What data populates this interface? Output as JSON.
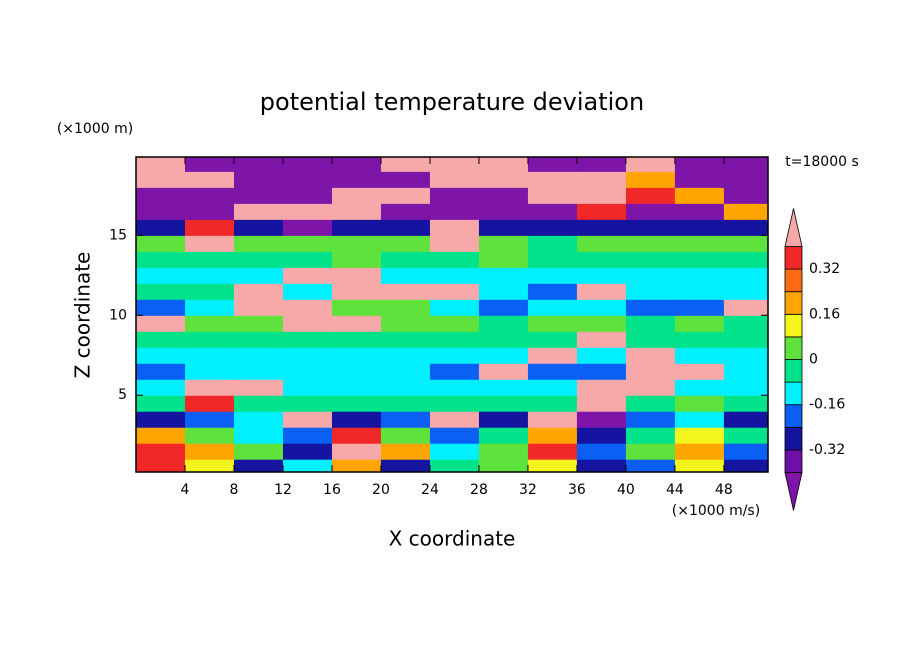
{
  "chart_data": {
    "type": "contour",
    "title": "potential temperature deviation",
    "xlabel": "X coordinate",
    "ylabel": "Z coordinate",
    "x_unit": "(×1000 m/s)",
    "y_unit": "(×1000 m)",
    "annotation": "t=18000 s",
    "x": [
      2,
      6,
      10,
      14,
      18,
      22,
      26,
      30,
      34,
      38,
      42,
      46,
      50
    ],
    "z": [
      0.5,
      1.5,
      2.5,
      3.5,
      4.5,
      5.5,
      6.5,
      7.5,
      8.5,
      9.5,
      10.5,
      11.5,
      12.5,
      13.5,
      14.5,
      15.5,
      16.5,
      17.5,
      18.5,
      19.5
    ],
    "values": [
      [
        0.36,
        0.12,
        -0.28,
        -0.12,
        0.2,
        -0.28,
        -0.04,
        0.04,
        0.12,
        -0.28,
        -0.2,
        0.12,
        -0.28
      ],
      [
        0.36,
        0.2,
        0.04,
        -0.28,
        0.45,
        0.2,
        -0.12,
        0.04,
        0.36,
        -0.2,
        0.04,
        0.2,
        -0.2
      ],
      [
        0.2,
        0.04,
        -0.12,
        -0.2,
        0.36,
        0.04,
        -0.2,
        -0.04,
        0.2,
        -0.28,
        -0.04,
        0.12,
        -0.04
      ],
      [
        -0.28,
        -0.2,
        -0.12,
        0.45,
        -0.28,
        -0.2,
        0.45,
        -0.28,
        0.45,
        -0.45,
        -0.2,
        -0.12,
        -0.28
      ],
      [
        -0.04,
        0.36,
        -0.04,
        -0.04,
        -0.04,
        -0.04,
        -0.04,
        -0.04,
        -0.04,
        0.45,
        -0.04,
        0.04,
        -0.04
      ],
      [
        -0.12,
        0.45,
        0.45,
        -0.12,
        -0.12,
        -0.12,
        -0.12,
        -0.12,
        -0.12,
        0.45,
        0.45,
        -0.12,
        -0.12
      ],
      [
        -0.2,
        -0.12,
        -0.12,
        -0.12,
        -0.12,
        -0.12,
        -0.2,
        0.45,
        -0.2,
        -0.2,
        0.45,
        0.45,
        -0.12
      ],
      [
        -0.12,
        -0.12,
        -0.12,
        -0.12,
        -0.12,
        -0.12,
        -0.12,
        -0.12,
        0.45,
        -0.12,
        0.45,
        -0.12,
        -0.12
      ],
      [
        -0.04,
        -0.04,
        -0.04,
        -0.04,
        -0.04,
        -0.04,
        -0.04,
        -0.04,
        -0.04,
        0.45,
        -0.04,
        -0.04,
        -0.04
      ],
      [
        0.45,
        0.04,
        0.04,
        0.45,
        0.45,
        0.04,
        0.04,
        -0.04,
        0.04,
        0.04,
        -0.04,
        0.04,
        -0.04
      ],
      [
        -0.2,
        -0.12,
        0.45,
        0.45,
        0.04,
        0.04,
        -0.12,
        -0.2,
        -0.12,
        -0.12,
        -0.2,
        -0.2,
        0.45
      ],
      [
        -0.04,
        -0.04,
        0.45,
        -0.12,
        0.45,
        0.45,
        0.45,
        -0.12,
        -0.2,
        0.45,
        -0.12,
        -0.12,
        -0.12
      ],
      [
        -0.12,
        -0.12,
        -0.12,
        0.45,
        0.45,
        -0.12,
        -0.12,
        -0.12,
        -0.12,
        -0.12,
        -0.12,
        -0.12,
        -0.12
      ],
      [
        -0.04,
        -0.04,
        -0.04,
        -0.04,
        0.04,
        -0.04,
        -0.04,
        0.04,
        -0.04,
        -0.04,
        -0.04,
        -0.04,
        -0.04
      ],
      [
        0.04,
        0.45,
        0.04,
        0.04,
        0.04,
        0.04,
        0.45,
        0.04,
        -0.04,
        0.04,
        0.04,
        0.04,
        0.04
      ],
      [
        -0.28,
        0.36,
        -0.28,
        -0.45,
        -0.28,
        -0.28,
        0.45,
        -0.28,
        -0.28,
        -0.28,
        -0.28,
        -0.28,
        -0.28
      ],
      [
        -0.45,
        -0.45,
        0.45,
        0.45,
        0.45,
        -0.45,
        -0.45,
        -0.45,
        -0.45,
        0.36,
        -0.45,
        -0.45,
        0.2
      ],
      [
        -0.45,
        -0.45,
        -0.45,
        -0.45,
        0.45,
        0.45,
        -0.45,
        -0.45,
        0.45,
        0.45,
        0.36,
        0.2,
        -0.45
      ],
      [
        0.45,
        0.45,
        -0.45,
        -0.45,
        -0.45,
        -0.45,
        0.45,
        0.45,
        0.45,
        0.45,
        0.2,
        -0.45,
        -0.45
      ],
      [
        0.45,
        -0.45,
        -0.45,
        -0.45,
        -0.45,
        0.45,
        0.45,
        0.45,
        -0.45,
        -0.45,
        0.45,
        -0.45,
        -0.45
      ]
    ],
    "xlim": [
      0,
      51.6
    ],
    "ylim": [
      0.2,
      19.9
    ],
    "xticks": [
      4,
      8,
      12,
      16,
      20,
      24,
      28,
      32,
      36,
      40,
      44,
      48
    ],
    "yticks": [
      5,
      10,
      15
    ],
    "levels": [
      -0.4,
      -0.32,
      -0.24,
      -0.16,
      -0.08,
      0,
      0.08,
      0.16,
      0.24,
      0.32,
      0.4
    ],
    "colors": [
      "#7e14a8",
      "#6e10a8",
      "#1414a0",
      "#0a5ff5",
      "#00f0ff",
      "#00e38a",
      "#5fe23c",
      "#f5f51e",
      "#ffa500",
      "#ff6a14",
      "#f02828",
      "#f7a8a8"
    ],
    "colorbar_ticks": [
      -0.32,
      -0.16,
      0,
      0.16,
      0.32
    ]
  }
}
